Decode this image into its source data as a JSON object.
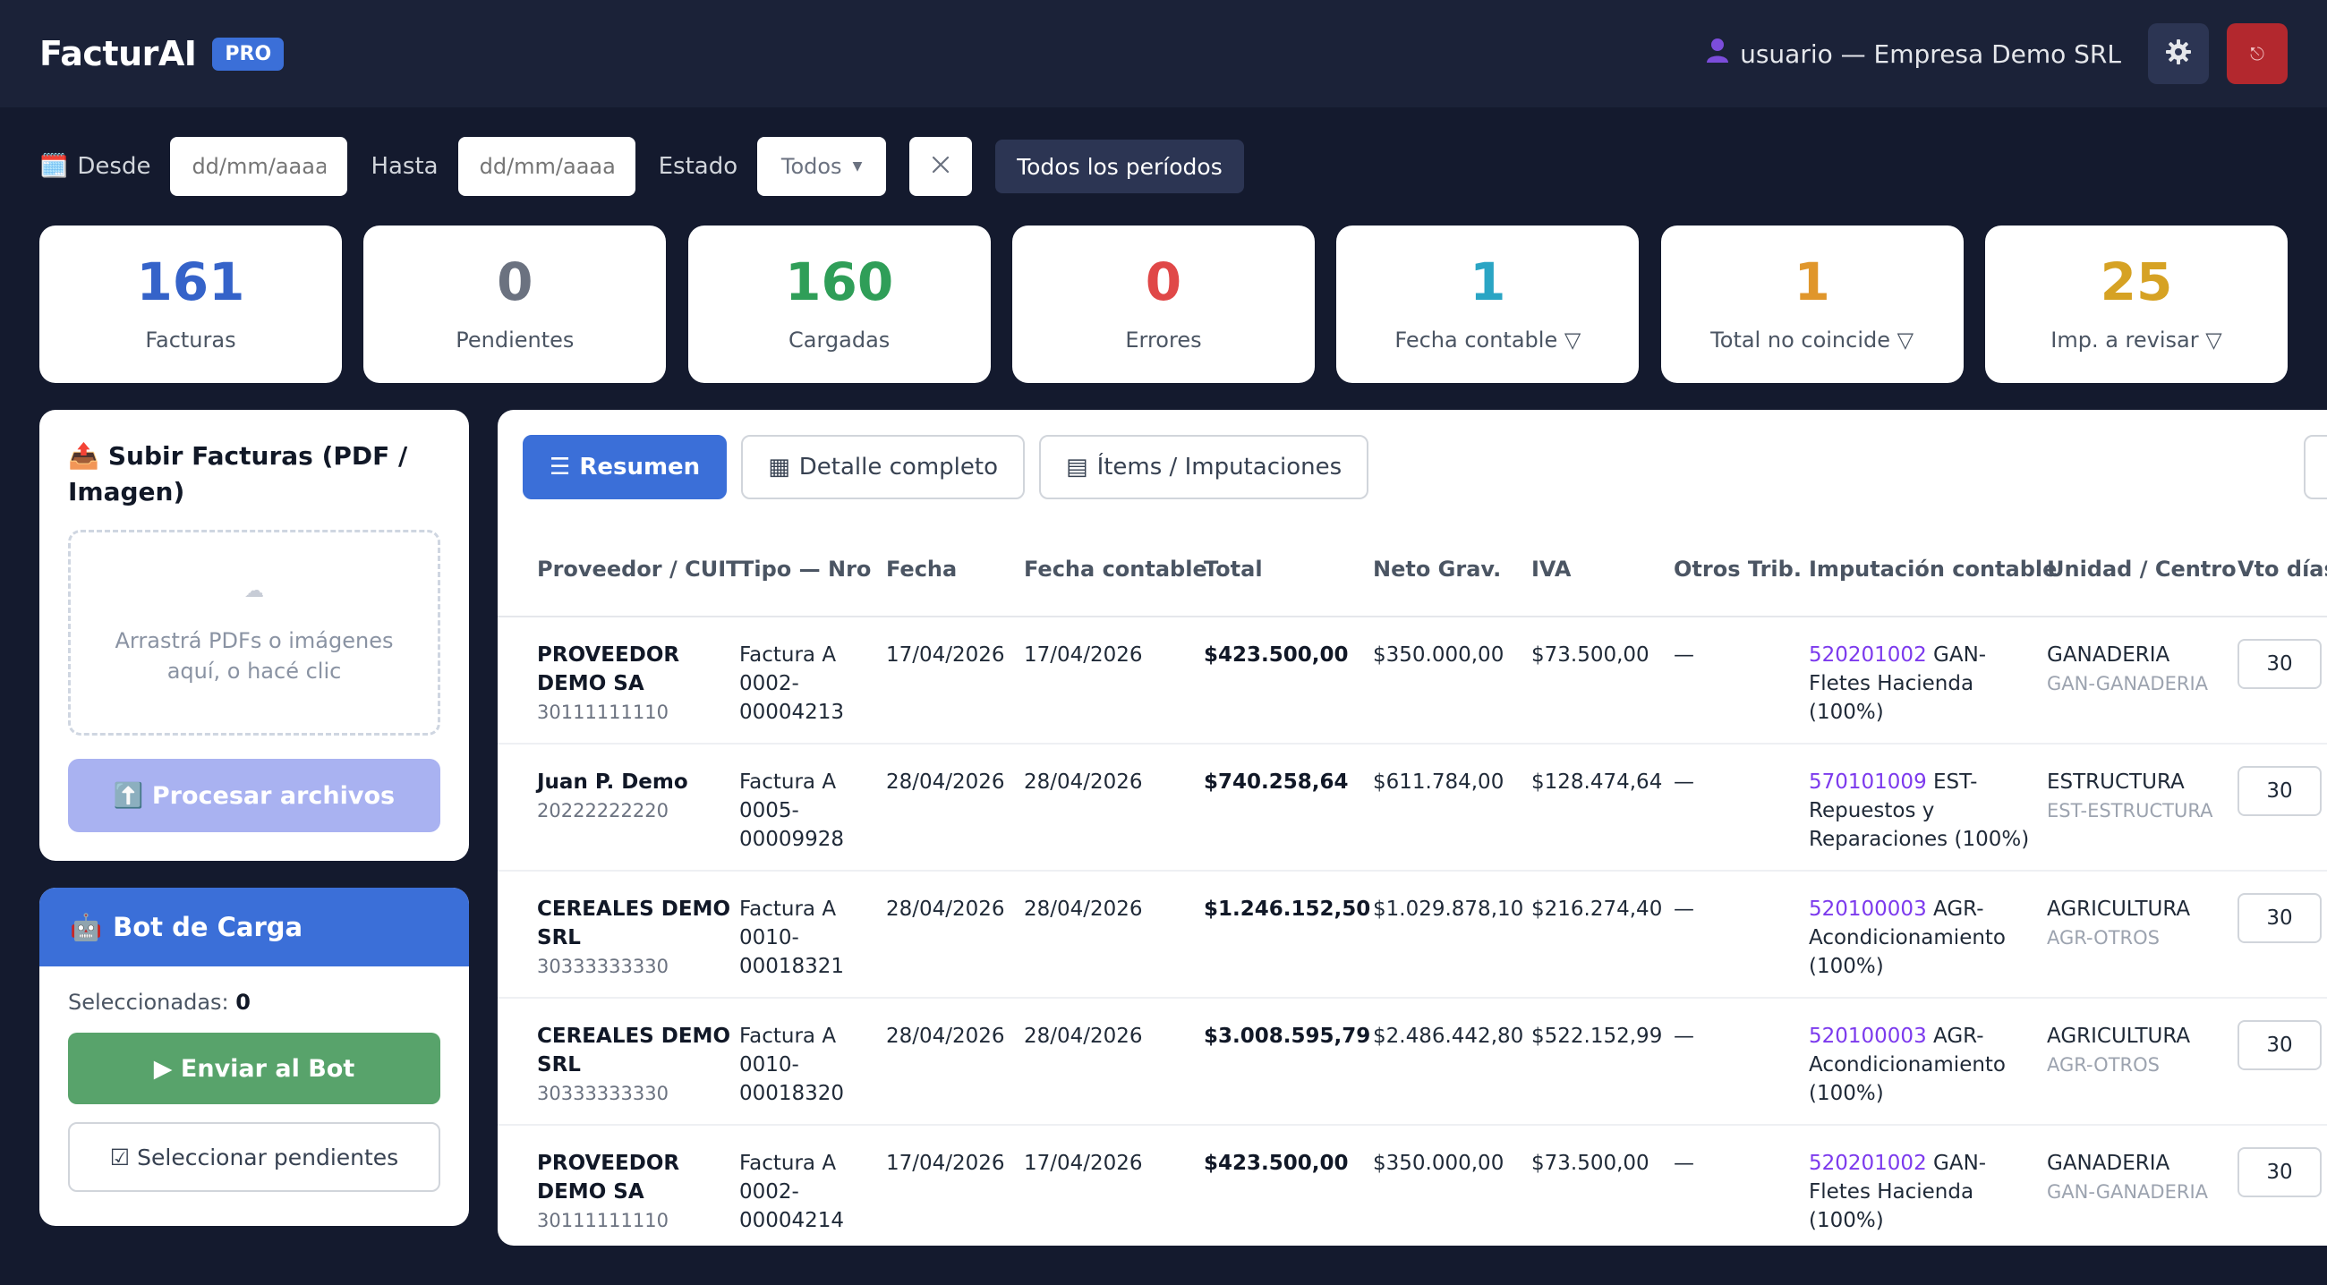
{
  "header": {
    "brand": "FacturAI",
    "badge": "PRO",
    "user": "usuario — Empresa Demo SRL",
    "user_icon": "user-icon",
    "settings_icon": "gear-icon",
    "logout_icon": "logout-icon",
    "logout_glyph": "⎋"
  },
  "filters": {
    "calendar_icon": "🗓️",
    "desde_label": "Desde",
    "desde_placeholder": "dd/mm/aaaa",
    "hasta_label": "Hasta",
    "hasta_placeholder": "dd/mm/aaaa",
    "estado_label": "Estado",
    "estado_value": "Todos",
    "estado_caret": "▼",
    "periods_button": "Todos los períodos"
  },
  "stats": [
    {
      "value": "161",
      "label": "Facturas",
      "color": "#3563c9"
    },
    {
      "value": "0",
      "label": "Pendientes",
      "color": "#6b7280"
    },
    {
      "value": "160",
      "label": "Cargadas",
      "color": "#2f9e58"
    },
    {
      "value": "0",
      "label": "Errores",
      "color": "#e04848"
    },
    {
      "value": "1",
      "label": "Fecha contable ▽",
      "color": "#2aa5c4"
    },
    {
      "value": "1",
      "label": "Total no coincide ▽",
      "color": "#e0962b"
    },
    {
      "value": "25",
      "label": "Imp. a revisar ▽",
      "color": "#d6a224"
    }
  ],
  "upload": {
    "icon": "📤",
    "title": "Subir Facturas (PDF / Imagen)",
    "cloud": "☁",
    "drop_text": "Arrastrá PDFs o imágenes aquí, o hacé clic",
    "process_button": "⬆️ Procesar archivos"
  },
  "bot": {
    "icon": "🤖",
    "title": "Bot de Carga",
    "selected_label": "Seleccionadas:",
    "selected_count": "0",
    "send_button": "▶ Enviar al Bot",
    "select_pending_button": "☑ Seleccionar pendientes"
  },
  "tabs": [
    {
      "icon": "☰",
      "label": "Resumen"
    },
    {
      "icon": "▦",
      "label": "Detalle completo"
    },
    {
      "icon": "▤",
      "label": "Ítems / Imputaciones"
    }
  ],
  "table": {
    "columns": [
      "Proveedor / CUIT",
      "Tipo — Nro",
      "Fecha",
      "Fecha contable",
      "Total",
      "Neto Grav.",
      "IVA",
      "Otros Trib.",
      "Imputación contable",
      "Unidad / Centro",
      "Vto días"
    ],
    "rows": [
      {
        "prov1": "PROVEEDOR",
        "prov2": "DEMO SA",
        "cuit": "30111111110",
        "tipo1": "Factura A",
        "tipo2": "0002-",
        "tipo3": "00004213",
        "fecha": "17/04/2026",
        "fecha_contable": "17/04/2026",
        "total": "$423.500,00",
        "neto": "$350.000,00",
        "iva": "$73.500,00",
        "otros": "—",
        "acc_code": "520201002",
        "acc1": " GAN-",
        "acc2": "Fletes Hacienda",
        "acc3": "(100%)",
        "unidad": "GANADERIA",
        "centro": "GAN-GANADERIA",
        "vto": "30"
      },
      {
        "prov1": "Juan P. Demo",
        "prov2": "",
        "cuit": "20222222220",
        "tipo1": "Factura A",
        "tipo2": "0005-",
        "tipo3": "00009928",
        "fecha": "28/04/2026",
        "fecha_contable": "28/04/2026",
        "total": "$740.258,64",
        "neto": "$611.784,00",
        "iva": "$128.474,64",
        "otros": "—",
        "acc_code": "570101009",
        "acc1": " EST-",
        "acc2": "Repuestos y",
        "acc3": "Reparaciones (100%)",
        "unidad": "ESTRUCTURA",
        "centro": "EST-ESTRUCTURA",
        "vto": "30"
      },
      {
        "prov1": "CEREALES DEMO",
        "prov2": "SRL",
        "cuit": "30333333330",
        "tipo1": "Factura A",
        "tipo2": "0010-",
        "tipo3": "00018321",
        "fecha": "28/04/2026",
        "fecha_contable": "28/04/2026",
        "total": "$1.246.152,50",
        "neto": "$1.029.878,10",
        "iva": "$216.274,40",
        "otros": "—",
        "acc_code": "520100003",
        "acc1": " AGR-",
        "acc2": "Acondicionamiento",
        "acc3": "(100%)",
        "unidad": "AGRICULTURA",
        "centro": "AGR-OTROS",
        "vto": "30"
      },
      {
        "prov1": "CEREALES DEMO",
        "prov2": "SRL",
        "cuit": "30333333330",
        "tipo1": "Factura A",
        "tipo2": "0010-",
        "tipo3": "00018320",
        "fecha": "28/04/2026",
        "fecha_contable": "28/04/2026",
        "total": "$3.008.595,79",
        "neto": "$2.486.442,80",
        "iva": "$522.152,99",
        "otros": "—",
        "acc_code": "520100003",
        "acc1": " AGR-",
        "acc2": "Acondicionamiento",
        "acc3": "(100%)",
        "unidad": "AGRICULTURA",
        "centro": "AGR-OTROS",
        "vto": "30"
      },
      {
        "prov1": "PROVEEDOR",
        "prov2": "DEMO SA",
        "cuit": "30111111110",
        "tipo1": "Factura A",
        "tipo2": "0002-",
        "tipo3": "00004214",
        "fecha": "17/04/2026",
        "fecha_contable": "17/04/2026",
        "total": "$423.500,00",
        "neto": "$350.000,00",
        "iva": "$73.500,00",
        "otros": "—",
        "acc_code": "520201002",
        "acc1": " GAN-",
        "acc2": "Fletes Hacienda",
        "acc3": "(100%)",
        "unidad": "GANADERIA",
        "centro": "GAN-GANADERIA",
        "vto": "30"
      }
    ]
  }
}
